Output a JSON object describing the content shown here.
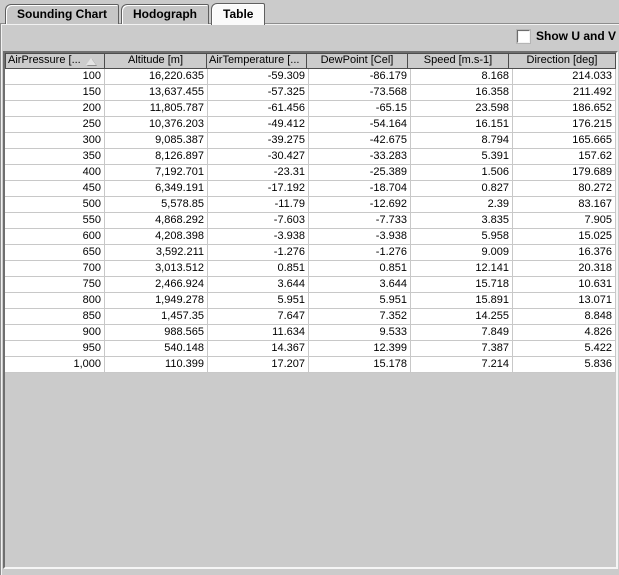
{
  "tabs": {
    "items": [
      {
        "label": "Sounding Chart"
      },
      {
        "label": "Hodograph"
      },
      {
        "label": "Table"
      }
    ],
    "selected": "Table"
  },
  "options": {
    "show_uv_label": "Show U and V",
    "show_uv_checked": false
  },
  "table": {
    "columns": [
      {
        "label": "AirPressure [...",
        "sort": "asc",
        "truncated": true
      },
      {
        "label": "Altitude [m]"
      },
      {
        "label": "AirTemperature [...",
        "truncated": true
      },
      {
        "label": "DewPoint [Cel]"
      },
      {
        "label": "Speed [m.s-1]"
      },
      {
        "label": "Direction [deg]"
      }
    ],
    "rows": [
      [
        "100",
        "16,220.635",
        "-59.309",
        "-86.179",
        "8.168",
        "214.033"
      ],
      [
        "150",
        "13,637.455",
        "-57.325",
        "-73.568",
        "16.358",
        "211.492"
      ],
      [
        "200",
        "11,805.787",
        "-61.456",
        "-65.15",
        "23.598",
        "186.652"
      ],
      [
        "250",
        "10,376.203",
        "-49.412",
        "-54.164",
        "16.151",
        "176.215"
      ],
      [
        "300",
        "9,085.387",
        "-39.275",
        "-42.675",
        "8.794",
        "165.665"
      ],
      [
        "350",
        "8,126.897",
        "-30.427",
        "-33.283",
        "5.391",
        "157.62"
      ],
      [
        "400",
        "7,192.701",
        "-23.31",
        "-25.389",
        "1.506",
        "179.689"
      ],
      [
        "450",
        "6,349.191",
        "-17.192",
        "-18.704",
        "0.827",
        "80.272"
      ],
      [
        "500",
        "5,578.85",
        "-11.79",
        "-12.692",
        "2.39",
        "83.167"
      ],
      [
        "550",
        "4,868.292",
        "-7.603",
        "-7.733",
        "3.835",
        "7.905"
      ],
      [
        "600",
        "4,208.398",
        "-3.938",
        "-3.938",
        "5.958",
        "15.025"
      ],
      [
        "650",
        "3,592.211",
        "-1.276",
        "-1.276",
        "9.009",
        "16.376"
      ],
      [
        "700",
        "3,013.512",
        "0.851",
        "0.851",
        "12.141",
        "20.318"
      ],
      [
        "750",
        "2,466.924",
        "3.644",
        "3.644",
        "15.718",
        "10.631"
      ],
      [
        "800",
        "1,949.278",
        "5.951",
        "5.951",
        "15.891",
        "13.071"
      ],
      [
        "850",
        "1,457.35",
        "7.647",
        "7.352",
        "14.255",
        "8.848"
      ],
      [
        "900",
        "988.565",
        "11.634",
        "9.533",
        "7.849",
        "4.826"
      ],
      [
        "950",
        "540.148",
        "14.367",
        "12.399",
        "7.387",
        "5.422"
      ],
      [
        "1,000",
        "110.399",
        "17.207",
        "15.178",
        "7.214",
        "5.836"
      ]
    ]
  },
  "colors": {
    "panel": "#cbcbcb",
    "selected_tab_bg": "#fafafa",
    "tab_bg": "#c6c6c6",
    "header_bg": "#cccccc",
    "grid_line": "#c8c8c8",
    "cell_bg": "#ffffff",
    "text": "#000000"
  }
}
